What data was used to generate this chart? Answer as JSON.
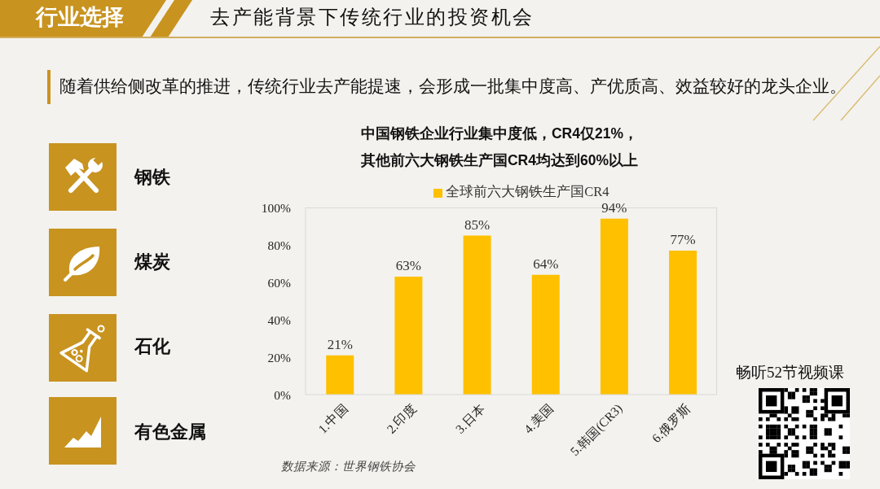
{
  "chart_data": {
    "type": "bar",
    "title": "中国钢铁企业行业集中度低，CR4仅21%，",
    "subtitle": "其他前六大钢铁生产国CR4均达到60%以上",
    "categories": [
      "1.中国",
      "2.印度",
      "3.日本",
      "4.美国",
      "5.韩国(CR3)",
      "6.俄罗斯"
    ],
    "series": [
      {
        "name": "全球前六大钢铁生产国CR4",
        "color": "#ffc000",
        "values": [
          21,
          63,
          85,
          64,
          94,
          77
        ],
        "value_labels": [
          "21%",
          "63%",
          "85%",
          "64%",
          "94%",
          "77%"
        ]
      }
    ],
    "ylim": [
      0,
      100
    ],
    "yticks": [
      {
        "value": 0,
        "label": "0%"
      },
      {
        "value": 20,
        "label": "20%"
      },
      {
        "value": 40,
        "label": "40%"
      },
      {
        "value": 60,
        "label": "60%"
      },
      {
        "value": 80,
        "label": "80%"
      },
      {
        "value": 100,
        "label": "100%"
      }
    ],
    "legend": "top",
    "annotations": [
      "行业选择",
      "去产能背景下传统行业的投资机会",
      "随着供给侧改革的推进，传统行业去产能提速，会形成一批集中度高、产优质高、效益较好的龙头企业。",
      "钢铁",
      "煤炭",
      "石化",
      "有色金属",
      "数据来源：世界钢铁协会",
      "畅听52节视频课"
    ]
  }
}
